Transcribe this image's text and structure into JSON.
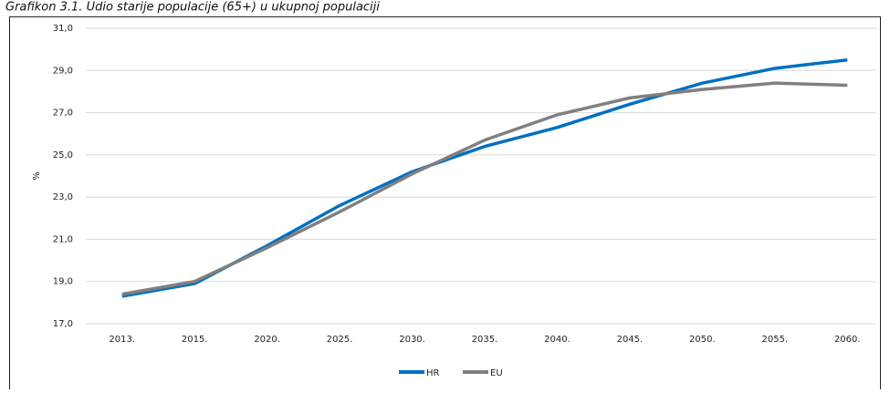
{
  "chart_data": {
    "type": "line",
    "title": "Grafikon 3.1. Udio starije populacije (65+) u ukupnoj populaciji",
    "ylabel": "%",
    "categories": [
      "2013.",
      "2015.",
      "2020.",
      "2025.",
      "2030.",
      "2035.",
      "2040.",
      "2045.",
      "2050.",
      "2055.",
      "2060."
    ],
    "series": [
      {
        "name": "HR",
        "color": "#0070c0",
        "values": [
          18.3,
          18.9,
          20.7,
          22.6,
          24.2,
          25.4,
          26.3,
          27.4,
          28.4,
          29.1,
          29.5
        ]
      },
      {
        "name": "EU",
        "color": "#808080",
        "values": [
          18.4,
          19.0,
          20.6,
          22.3,
          24.1,
          25.7,
          26.9,
          27.7,
          28.1,
          28.4,
          28.3
        ]
      }
    ],
    "ylim": [
      17,
      31
    ],
    "yticks": [
      {
        "value": 17,
        "label": "17,0"
      },
      {
        "value": 19,
        "label": "19,0"
      },
      {
        "value": 21,
        "label": "21,0"
      },
      {
        "value": 23,
        "label": "23,0"
      },
      {
        "value": 25,
        "label": "25,0"
      },
      {
        "value": 27,
        "label": "27,0"
      },
      {
        "value": 29,
        "label": "29,0"
      },
      {
        "value": 31,
        "label": "31,0"
      }
    ],
    "grid": true,
    "legend": "bottom"
  }
}
